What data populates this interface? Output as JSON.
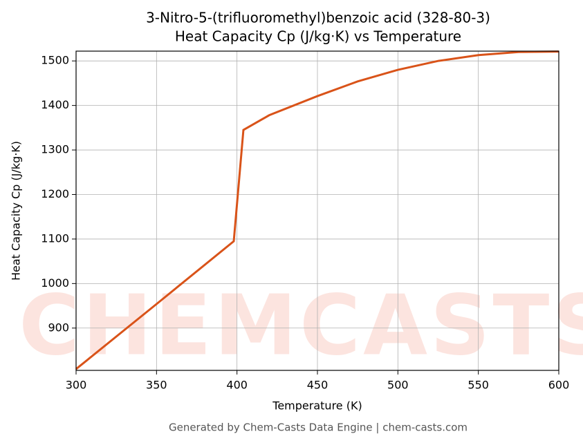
{
  "chart_data": {
    "type": "line",
    "title": "3-Nitro-5-(trifluoromethyl)benzoic acid (328-80-3)",
    "subtitle": "Heat Capacity Cp (J/kg·K) vs Temperature",
    "x_label": "Temperature (K)",
    "y_label": "Heat Capacity Cp (J/kg·K)",
    "footer": "Generated by Chem-Casts Data Engine | chem-casts.com",
    "watermark": "CHEMCASTS",
    "x": [
      300,
      350,
      398,
      404,
      420,
      450,
      475,
      500,
      525,
      550,
      575,
      600
    ],
    "series": [
      {
        "name": "Cp",
        "color": "#d95319",
        "values": [
          808,
          954,
          1095,
          1345,
          1378,
          1421,
          1454,
          1480,
          1500,
          1513,
          1520,
          1521
        ]
      }
    ],
    "xlim": [
      300,
      600
    ],
    "xticks": [
      300,
      350,
      400,
      450,
      500,
      550,
      600
    ],
    "ylim": [
      805,
      1522
    ],
    "yticks": [
      900,
      1000,
      1100,
      1200,
      1300,
      1400,
      1500
    ],
    "grid": true
  }
}
